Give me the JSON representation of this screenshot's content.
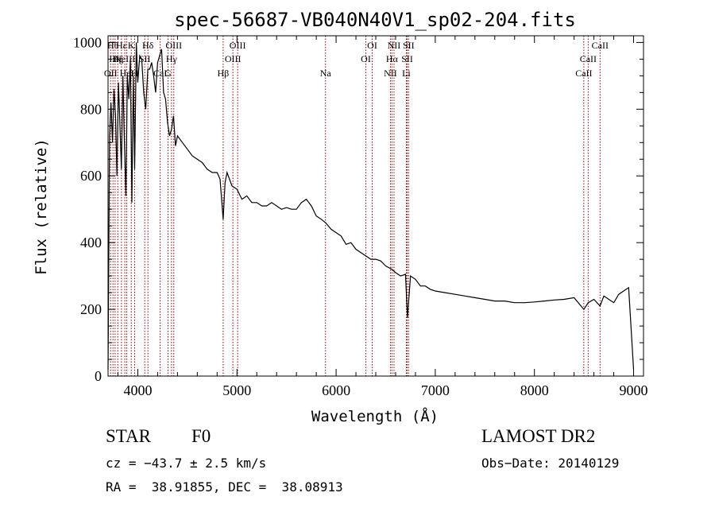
{
  "chart_data": {
    "type": "line",
    "title": "spec-56687-VB040N40V1_sp02-204.fits",
    "xlabel": "Wavelength (Å)",
    "ylabel": "Flux (relative)",
    "xlim": [
      3700,
      9100
    ],
    "ylim": [
      0,
      1020
    ],
    "xticks": [
      4000,
      5000,
      6000,
      7000,
      8000,
      9000
    ],
    "yticks": [
      0,
      200,
      400,
      600,
      800,
      1000
    ],
    "series": [
      {
        "x": [
          3700,
          3715,
          3730,
          3745,
          3760,
          3775,
          3790,
          3805,
          3820,
          3835,
          3850,
          3865,
          3880,
          3895,
          3910,
          3925,
          3940,
          3955,
          3968,
          3985,
          4000,
          4020,
          4040,
          4060,
          4080,
          4101,
          4120,
          4140,
          4160,
          4180,
          4200,
          4220,
          4240,
          4260,
          4280,
          4300,
          4320,
          4340,
          4360,
          4380,
          4400,
          4450,
          4500,
          4550,
          4600,
          4650,
          4700,
          4750,
          4800,
          4830,
          4861,
          4880,
          4900,
          4950,
          5000,
          5050,
          5100,
          5150,
          5200,
          5250,
          5300,
          5350,
          5400,
          5450,
          5500,
          5550,
          5600,
          5650,
          5700,
          5750,
          5800,
          5850,
          5893,
          5950,
          6000,
          6050,
          6100,
          6150,
          6200,
          6250,
          6300,
          6350,
          6400,
          6450,
          6500,
          6563,
          6600,
          6650,
          6700,
          6720,
          6750,
          6800,
          6850,
          6900,
          6950,
          7000,
          7100,
          7200,
          7300,
          7400,
          7500,
          7600,
          7700,
          7800,
          7900,
          8000,
          8100,
          8200,
          8300,
          8400,
          8498,
          8542,
          8600,
          8662,
          8700,
          8750,
          8800,
          8850,
          8900,
          8950,
          9000
        ],
        "values": [
          20,
          720,
          820,
          700,
          860,
          780,
          600,
          880,
          750,
          620,
          900,
          700,
          540,
          900,
          830,
          950,
          520,
          900,
          620,
          1000,
          880,
          960,
          950,
          850,
          800,
          920,
          920,
          940,
          900,
          850,
          940,
          960,
          980,
          850,
          830,
          760,
          720,
          740,
          780,
          690,
          720,
          700,
          680,
          660,
          650,
          640,
          620,
          610,
          610,
          590,
          470,
          580,
          610,
          570,
          560,
          530,
          540,
          520,
          520,
          510,
          510,
          520,
          510,
          500,
          505,
          500,
          500,
          520,
          530,
          510,
          480,
          470,
          460,
          440,
          430,
          420,
          395,
          400,
          380,
          370,
          360,
          350,
          350,
          345,
          330,
          320,
          310,
          300,
          305,
          175,
          300,
          290,
          270,
          270,
          260,
          255,
          250,
          245,
          240,
          235,
          230,
          225,
          225,
          220,
          220,
          222,
          225,
          228,
          230,
          235,
          200,
          220,
          230,
          210,
          240,
          230,
          220,
          245,
          255,
          265,
          20
        ]
      }
    ],
    "lines": [
      {
        "x": 3726,
        "label": "OII",
        "row": 3
      },
      {
        "x": 3750,
        "label": "Hθ",
        "row": 1
      },
      {
        "x": 3771,
        "label": "Hη",
        "row": 2
      },
      {
        "x": 3798,
        "label": "Hζ",
        "row": 2
      },
      {
        "x": 3835,
        "label": "Hε",
        "row": 1
      },
      {
        "x": 3869,
        "label": "NeIII",
        "row": 2
      },
      {
        "x": 3889,
        "label": "HeI",
        "row": 3
      },
      {
        "x": 3934,
        "label": "K",
        "row": 1
      },
      {
        "x": 3968,
        "label": "H",
        "row": 3
      },
      {
        "x": 4070,
        "label": "SII",
        "row": 2
      },
      {
        "x": 4102,
        "label": "Hδ",
        "row": 1
      },
      {
        "x": 4226,
        "label": "CaI",
        "row": 3
      },
      {
        "x": 4305,
        "label": "G",
        "row": 3
      },
      {
        "x": 4340,
        "label": "Hγ",
        "row": 2
      },
      {
        "x": 4363,
        "label": "OIII",
        "row": 1
      },
      {
        "x": 4861,
        "label": "Hβ",
        "row": 3
      },
      {
        "x": 4959,
        "label": "OIII",
        "row": 2
      },
      {
        "x": 5007,
        "label": "OIII",
        "row": 1
      },
      {
        "x": 5893,
        "label": "Na",
        "row": 3
      },
      {
        "x": 6300,
        "label": "OI",
        "row": 2
      },
      {
        "x": 6364,
        "label": "OI",
        "row": 1
      },
      {
        "x": 6548,
        "label": "NII",
        "row": 3
      },
      {
        "x": 6563,
        "label": "Hα",
        "row": 2
      },
      {
        "x": 6584,
        "label": "NII",
        "row": 1
      },
      {
        "x": 6708,
        "label": "Li",
        "row": 3
      },
      {
        "x": 6717,
        "label": "SII",
        "row": 2
      },
      {
        "x": 6731,
        "label": "SII",
        "row": 1
      },
      {
        "x": 8498,
        "label": "CaII",
        "row": 3
      },
      {
        "x": 8542,
        "label": "CaII",
        "row": 2
      },
      {
        "x": 8662,
        "label": "CaII",
        "row": 1
      }
    ],
    "line_color": "#8b0000",
    "spectrum_color": "#000000"
  },
  "info": {
    "class": "STAR",
    "subclass": "F0",
    "survey": "LAMOST DR2",
    "cz": "cz = −43.7 ± 2.5 km/s",
    "obs_date": "Obs−Date: 20140129",
    "coords": "RA =  38.91855, DEC =  38.08913"
  }
}
